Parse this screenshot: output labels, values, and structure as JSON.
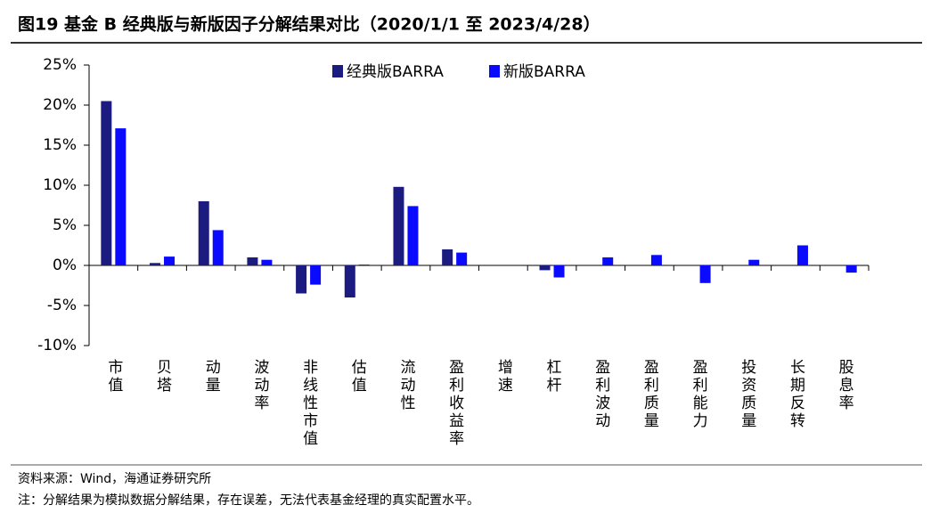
{
  "chart_data": {
    "type": "bar",
    "title": "图19 基金 B 经典版与新版因子分解结果对比（2020/1/1 至 2023/4/28）",
    "source": "资料来源：Wind，海通证券研究所",
    "note": "注：分解结果为模拟数据分解结果，存在误差，无法代表基金经理的真实配置水平。",
    "categories": [
      "市值",
      "贝塔",
      "动量",
      "波动率",
      "非线性市值",
      "估值",
      "流动性",
      "盈利收益率",
      "增速",
      "杠杆",
      "盈利波动",
      "盈利质量",
      "盈利能力",
      "投资质量",
      "长期反转",
      "股息率"
    ],
    "series": [
      {
        "name": "经典版BARRA",
        "color": "#1c1c80",
        "values": [
          20.5,
          0.3,
          8.0,
          1.0,
          -3.5,
          -4.0,
          9.8,
          2.0,
          0,
          -0.6,
          0,
          0,
          0,
          0,
          0,
          0
        ]
      },
      {
        "name": "新版BARRA",
        "color": "#0a0aff",
        "values": [
          17.1,
          1.1,
          4.4,
          0.7,
          -2.4,
          0.1,
          7.4,
          1.6,
          0,
          -1.5,
          1.0,
          1.3,
          -2.2,
          0.7,
          2.5,
          -0.9
        ]
      }
    ],
    "ylim": [
      -10,
      25
    ],
    "yticks": [
      {
        "value": -10,
        "label": "-10%"
      },
      {
        "value": -5,
        "label": "-5%"
      },
      {
        "value": 0,
        "label": "0%"
      },
      {
        "value": 5,
        "label": "5%"
      },
      {
        "value": 10,
        "label": "10%"
      },
      {
        "value": 15,
        "label": "15%"
      },
      {
        "value": 20,
        "label": "20%"
      },
      {
        "value": 25,
        "label": "25%"
      }
    ]
  }
}
